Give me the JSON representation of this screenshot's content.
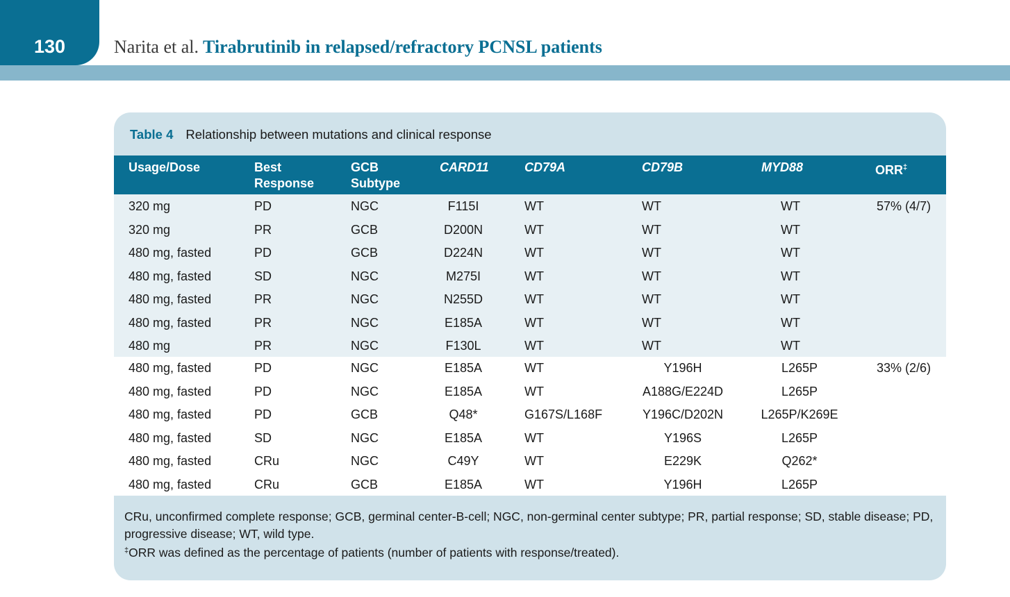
{
  "header": {
    "page_number": "130",
    "authors": "Narita et al.",
    "title": "Tirabrutinib in relapsed/refractory PCNSL patients"
  },
  "table": {
    "label": "Table 4",
    "caption": "Relationship between mutations and clinical response",
    "columns": [
      {
        "line1": "Usage/Dose",
        "line2": "",
        "italic": false
      },
      {
        "line1": "Best",
        "line2": "Response",
        "italic": false
      },
      {
        "line1": "GCB",
        "line2": "Subtype",
        "italic": false
      },
      {
        "line1": "CARD11",
        "line2": "",
        "italic": true
      },
      {
        "line1": "CD79A",
        "line2": "",
        "italic": true
      },
      {
        "line1": "CD79B",
        "line2": "",
        "italic": true
      },
      {
        "line1": "MYD88",
        "line2": "",
        "italic": true
      },
      {
        "line1": "ORR",
        "line2": "",
        "italic": false,
        "sup": "‡"
      }
    ],
    "group_a": [
      [
        "320 mg",
        "PD",
        "NGC",
        "F115I",
        "WT",
        "WT",
        "WT",
        "57% (4/7)"
      ],
      [
        "320 mg",
        "PR",
        "GCB",
        "D200N",
        "WT",
        "WT",
        "WT",
        ""
      ],
      [
        "480 mg, fasted",
        "PD",
        "GCB",
        "D224N",
        "WT",
        "WT",
        "WT",
        ""
      ],
      [
        "480 mg, fasted",
        "SD",
        "NGC",
        "M275I",
        "WT",
        "WT",
        "WT",
        ""
      ],
      [
        "480 mg, fasted",
        "PR",
        "NGC",
        "N255D",
        "WT",
        "WT",
        "WT",
        ""
      ],
      [
        "480 mg, fasted",
        "PR",
        "NGC",
        "E185A",
        "WT",
        "WT",
        "WT",
        ""
      ],
      [
        "480 mg",
        "PR",
        "NGC",
        "F130L",
        "WT",
        "WT",
        "WT",
        ""
      ]
    ],
    "group_b": [
      [
        "480 mg, fasted",
        "PD",
        "NGC",
        "E185A",
        "WT",
        "Y196H",
        "L265P",
        "33% (2/6)"
      ],
      [
        "480 mg, fasted",
        "PD",
        "NGC",
        "E185A",
        "WT",
        "A188G/E224D",
        "L265P",
        ""
      ],
      [
        "480 mg, fasted",
        "PD",
        "GCB",
        "Q48*",
        "G167S/L168F",
        "Y196C/D202N",
        "L265P/K269E",
        ""
      ],
      [
        "480 mg, fasted",
        "SD",
        "NGC",
        "E185A",
        "WT",
        "Y196S",
        "L265P",
        ""
      ],
      [
        "480 mg, fasted",
        "CRu",
        "NGC",
        "C49Y",
        "WT",
        "E229K",
        "Q262*",
        ""
      ],
      [
        "480 mg, fasted",
        "CRu",
        "GCB",
        "E185A",
        "WT",
        "Y196H",
        "L265P",
        ""
      ]
    ],
    "footnote_abbrev": "CRu, unconfirmed complete response; GCB, germinal center-B-cell; NGC, non-germinal center subtype; PR, partial response; SD, stable disease; PD, progressive disease; WT, wild type.",
    "footnote_orr_mark": "‡",
    "footnote_orr": "ORR was defined as the percentage of patients (number of patients with response/treated)."
  }
}
